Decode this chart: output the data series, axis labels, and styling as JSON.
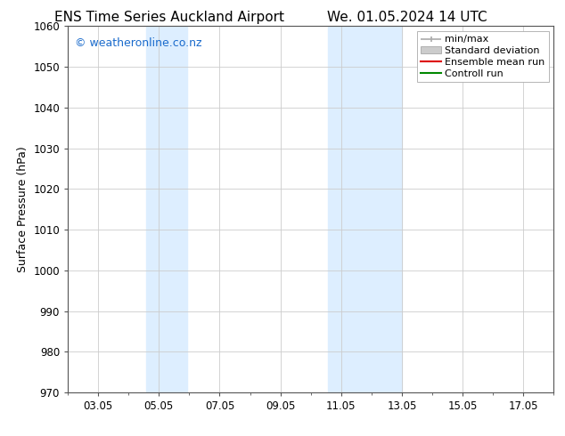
{
  "title_left": "ENS Time Series Auckland Airport",
  "title_right": "We. 01.05.2024 14 UTC",
  "ylabel": "Surface Pressure (hPa)",
  "ylim": [
    970,
    1060
  ],
  "yticks": [
    970,
    980,
    990,
    1000,
    1010,
    1020,
    1030,
    1040,
    1050,
    1060
  ],
  "x_min": 2.0,
  "x_max": 18.0,
  "xtick_labels": [
    "03.05",
    "05.05",
    "07.05",
    "09.05",
    "11.05",
    "13.05",
    "15.05",
    "17.05"
  ],
  "xtick_positions": [
    3,
    5,
    7,
    9,
    11,
    13,
    15,
    17
  ],
  "shaded_bands": [
    {
      "x_start": 4.58,
      "x_end": 5.92,
      "color": "#ddeeff"
    },
    {
      "x_start": 10.58,
      "x_end": 13.0,
      "color": "#ddeeff"
    }
  ],
  "watermark_text": "© weatheronline.co.nz",
  "watermark_color": "#1a6bcc",
  "watermark_fontsize": 9,
  "legend_entries": [
    {
      "label": "min/max",
      "color": "#aaaaaa",
      "lw": 1.2,
      "style": "minmax"
    },
    {
      "label": "Standard deviation",
      "color": "#cccccc",
      "lw": 5,
      "style": "bar"
    },
    {
      "label": "Ensemble mean run",
      "color": "#dd0000",
      "lw": 1.5,
      "style": "line"
    },
    {
      "label": "Controll run",
      "color": "#008800",
      "lw": 1.5,
      "style": "line"
    }
  ],
  "bg_color": "#ffffff",
  "plot_bg_color": "#ffffff",
  "grid_color": "#cccccc",
  "title_fontsize": 11,
  "axis_label_fontsize": 9,
  "tick_fontsize": 8.5,
  "legend_fontsize": 8
}
